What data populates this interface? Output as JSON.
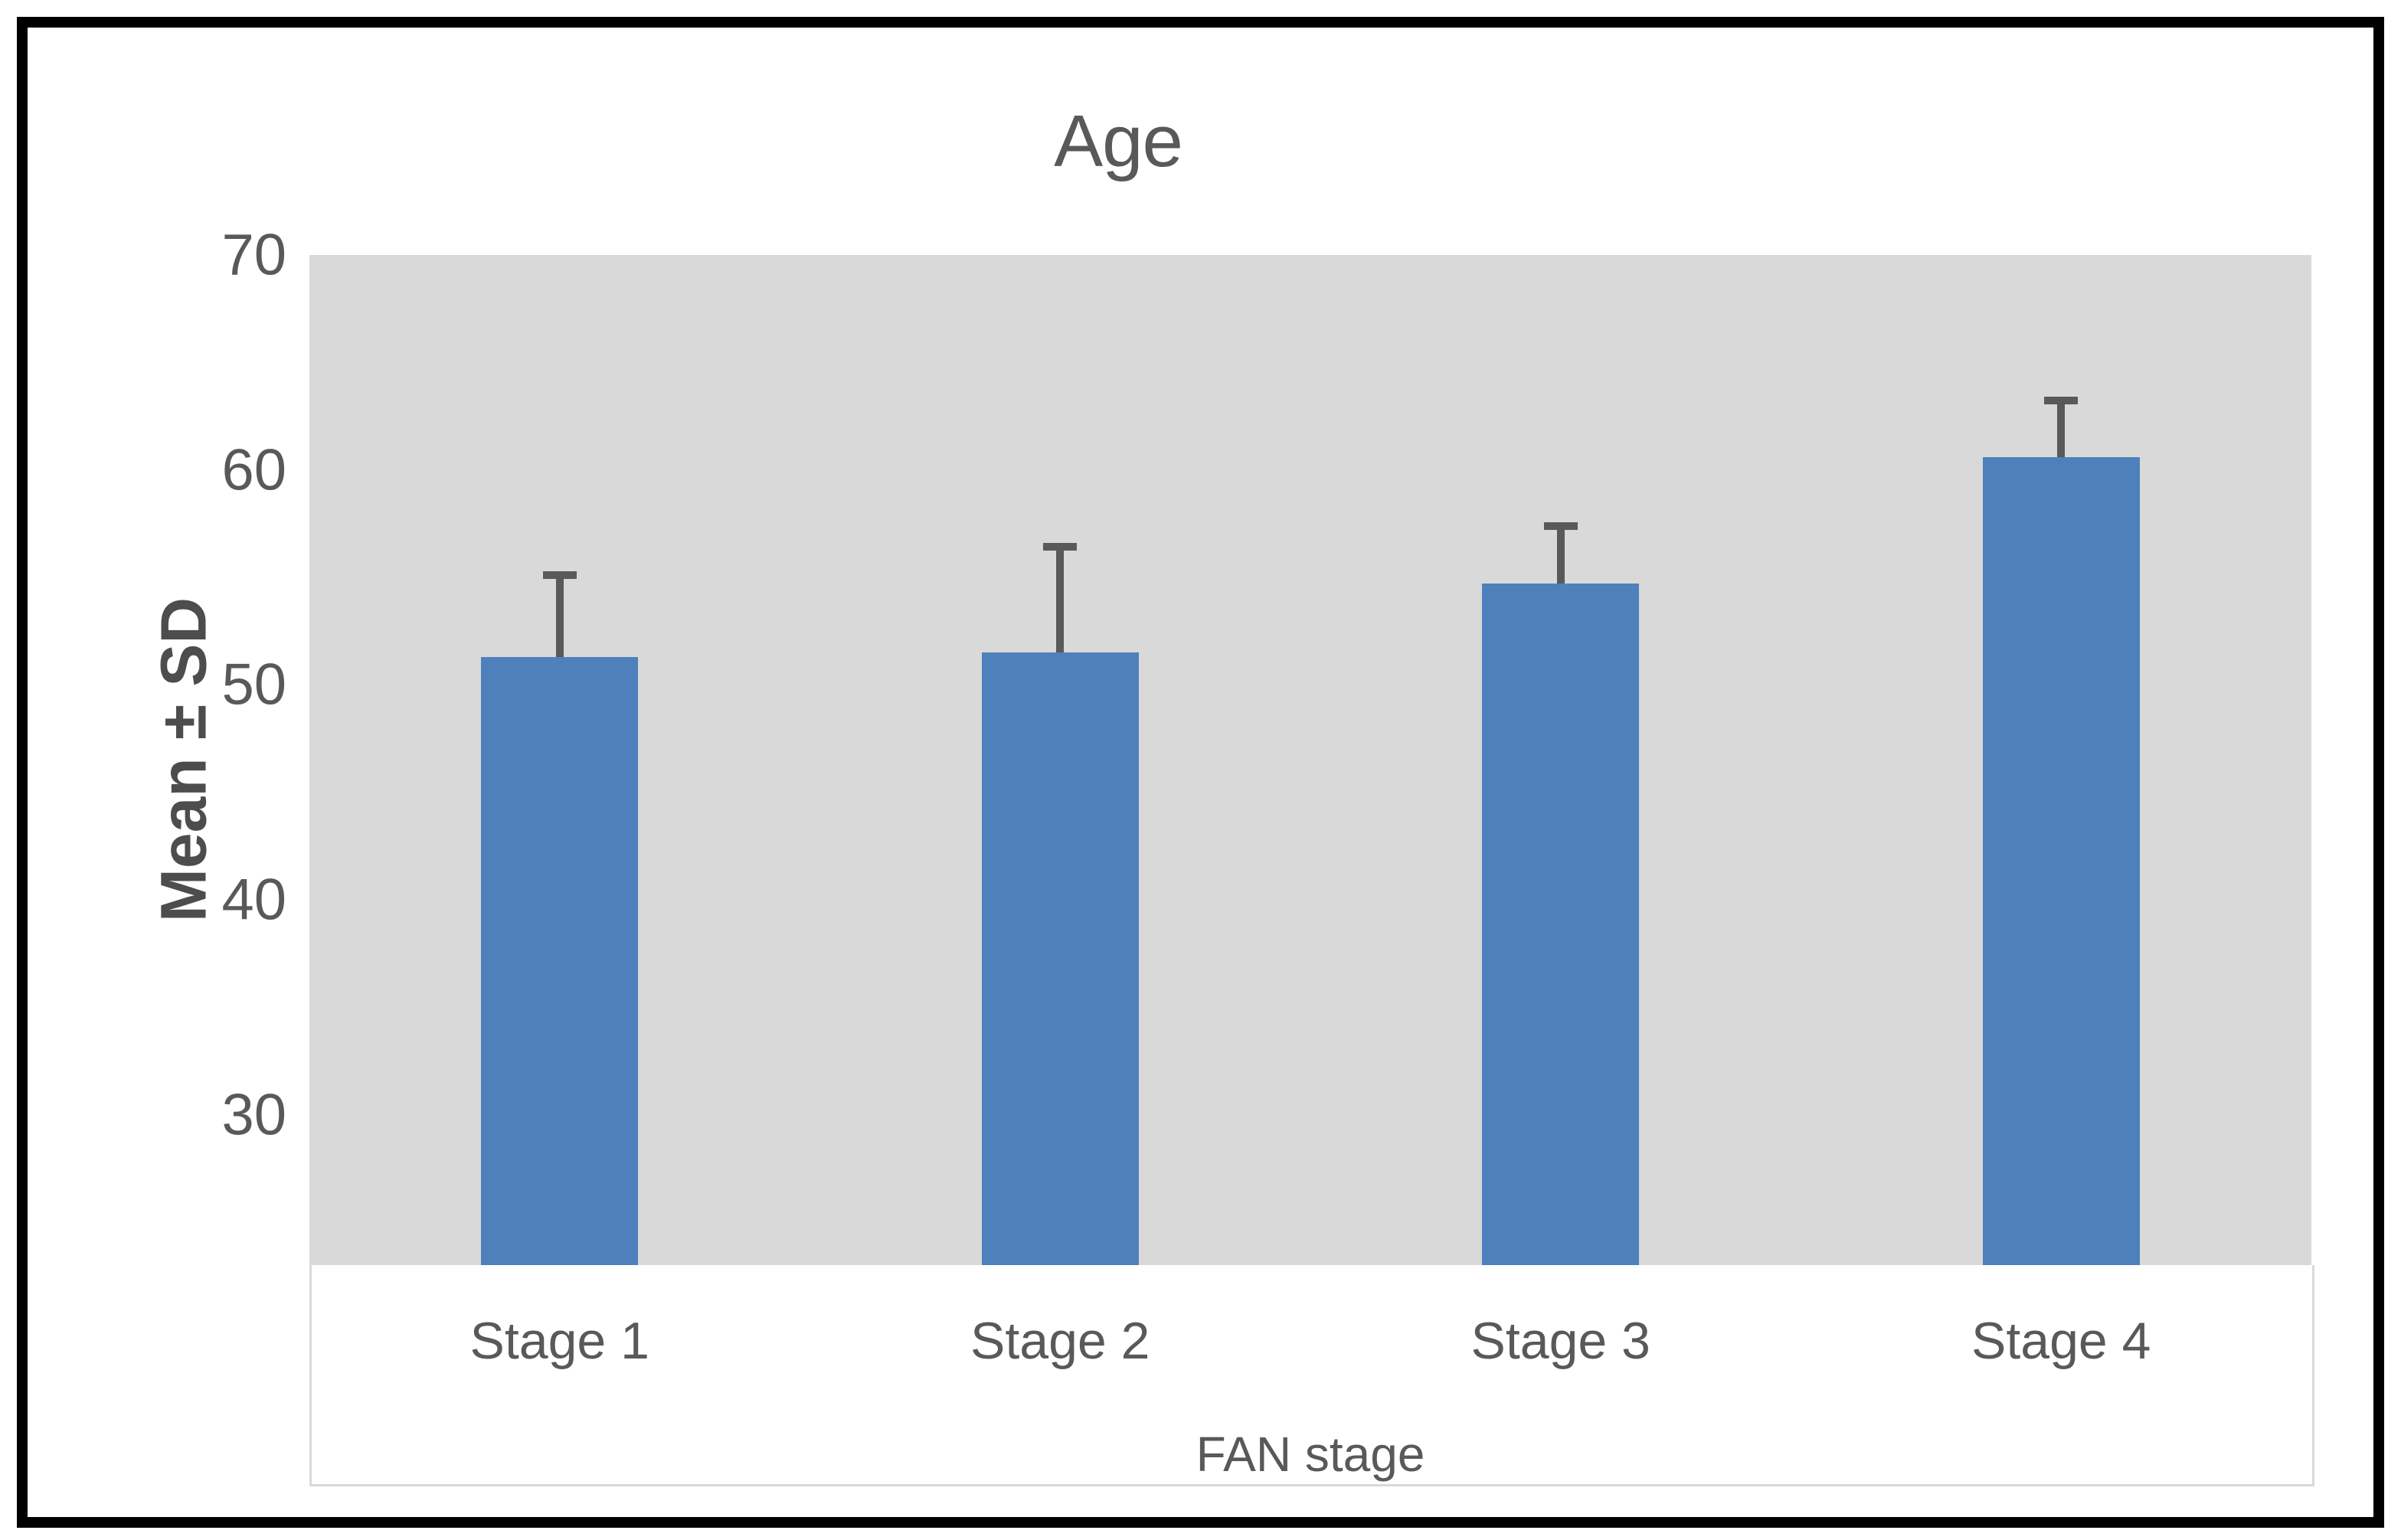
{
  "chart_data": {
    "type": "bar",
    "title": "Age",
    "xlabel": "FAN stage",
    "ylabel": "Mean ± SD",
    "categories": [
      "Stage 1",
      "Stage 2",
      "Stage 3",
      "Stage 4"
    ],
    "series": [
      {
        "name": "Mean",
        "values": [
          51.3,
          51.5,
          54.7,
          60.6
        ]
      },
      {
        "name": "SD",
        "values": [
          4.0,
          5.1,
          2.85,
          2.8
        ]
      }
    ],
    "error_bars": "upper_sd_whisker_only",
    "ylim": [
      23,
      70
    ],
    "yticks": [
      30,
      40,
      50,
      60,
      70
    ],
    "grid": false,
    "legend_position": "none",
    "plot_background": "#d9d9d9",
    "colors": {
      "bar": "#4e80bc",
      "error_bar": "#595959",
      "plot_bg": "#d9d9d9",
      "text": "#595959",
      "outer_frame": "#000000",
      "axis_box_line": "#d9d9d9"
    }
  }
}
